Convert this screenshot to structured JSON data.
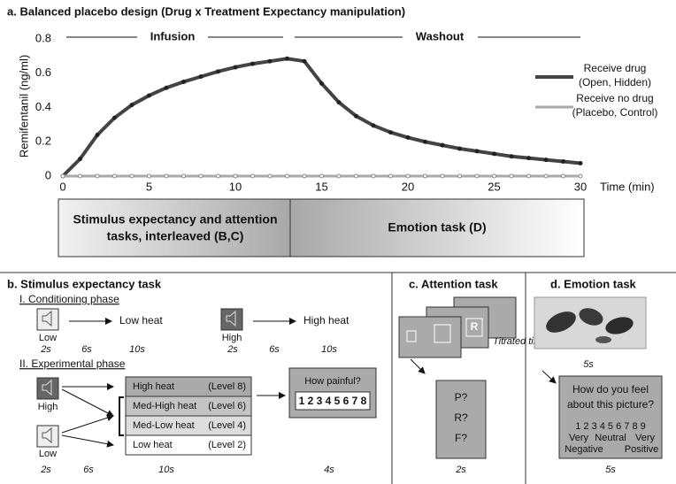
{
  "chart_data": {
    "type": "line",
    "title": "a. Balanced placebo design (Drug x Treatment Expectancy manipulation)",
    "annotations": [
      "Infusion",
      "Washout"
    ],
    "y_label": "Remifentanil (ng/ml)",
    "x_label": "Time (min)",
    "x": [
      0,
      1,
      2,
      3,
      4,
      5,
      6,
      7,
      8,
      9,
      10,
      11,
      12,
      13,
      14,
      15,
      16,
      17,
      18,
      19,
      20,
      21,
      22,
      23,
      24,
      25,
      26,
      27,
      28,
      29,
      30
    ],
    "series": [
      {
        "name": "Receive drug",
        "note": "(Open, Hidden)",
        "color": "#444444",
        "values": [
          0,
          0.1,
          0.24,
          0.34,
          0.415,
          0.47,
          0.515,
          0.55,
          0.58,
          0.61,
          0.635,
          0.655,
          0.67,
          0.685,
          0.67,
          0.54,
          0.43,
          0.35,
          0.295,
          0.255,
          0.225,
          0.2,
          0.18,
          0.16,
          0.145,
          0.13,
          0.115,
          0.105,
          0.095,
          0.085,
          0.075
        ]
      },
      {
        "name": "Receive no drug",
        "note": "(Placebo, Control)",
        "color": "#aaaaaa",
        "values": [
          0,
          0,
          0,
          0,
          0,
          0,
          0,
          0,
          0,
          0,
          0,
          0,
          0,
          0,
          0,
          0,
          0,
          0,
          0,
          0,
          0,
          0,
          0,
          0,
          0,
          0,
          0,
          0,
          0,
          0,
          0
        ]
      }
    ],
    "xlim": [
      0,
      30
    ],
    "ylim": [
      0,
      0.8
    ],
    "xticks": [
      0,
      5,
      10,
      15,
      20,
      25,
      30
    ],
    "yticks": [
      0,
      0.2,
      0.4,
      0.6,
      0.8
    ],
    "grid": false
  },
  "timeline": {
    "segments": [
      {
        "lines": [
          "Stimulus expectancy and attention",
          "tasks, interleaved (B,C)"
        ]
      },
      {
        "lines": [
          "Emotion task (D)"
        ]
      }
    ]
  },
  "panel_b": {
    "title": "b. Stimulus expectancy task",
    "phase1": "I. Conditioning phase",
    "low_label": "Low",
    "low_outcome": "Low heat",
    "high_label": "High",
    "high_outcome": "High heat",
    "phase1_timing": [
      "2s",
      "6s",
      "10s",
      "2s",
      "6s",
      "10s"
    ],
    "phase2": "II. Experimental phase",
    "cue_high": "High",
    "cue_low": "Low",
    "levels": [
      [
        "High heat",
        "(Level 8)"
      ],
      [
        "Med-High heat",
        "(Level 6)"
      ],
      [
        "Med-Low heat",
        "(Level 4)"
      ],
      [
        "Low heat",
        "(Level 2)"
      ]
    ],
    "rating_question": "How painful?",
    "rating_scale": "1 2 3 4 5 6 7 8",
    "phase2_timing": [
      "2s",
      "6s",
      "10s",
      "4s"
    ]
  },
  "panel_c": {
    "title": "c. Attention task",
    "card_letter": "R",
    "timing_note": "Titrated timing",
    "prompts": [
      "P?",
      "R?",
      "F?"
    ],
    "timing": "2s"
  },
  "panel_d": {
    "title": "d. Emotion task",
    "image_timing": "5s",
    "question": [
      "How do you feel",
      "about this picture?"
    ],
    "scale": "1 2 3 4 5 6 7 8 9",
    "anchors": [
      "Very",
      "Neutral",
      "Very",
      "Negative",
      "Positive"
    ],
    "timing": "5s"
  }
}
